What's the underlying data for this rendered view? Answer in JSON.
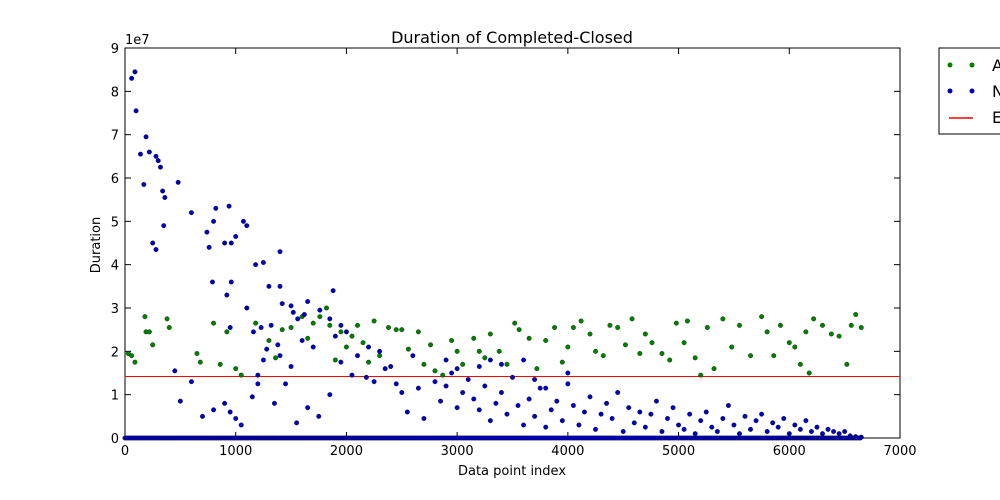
{
  "chart_data": {
    "type": "scatter",
    "title": "Duration of Completed-Closed",
    "xlabel": "Data point index",
    "ylabel": "Duration",
    "y_offset_label": "1e7",
    "xlim": [
      0,
      7000
    ],
    "ylim": [
      0,
      90000000
    ],
    "x_ticks": [
      0,
      1000,
      2000,
      3000,
      4000,
      5000,
      6000,
      7000
    ],
    "y_ticks": [
      0,
      10000000,
      20000000,
      30000000,
      40000000,
      50000000,
      60000000,
      70000000,
      80000000,
      90000000
    ],
    "x_tick_labels": [
      "0",
      "1000",
      "2000",
      "3000",
      "4000",
      "5000",
      "6000",
      "7000"
    ],
    "y_tick_labels": [
      "0",
      "1",
      "2",
      "3",
      "4",
      "5",
      "6",
      "7",
      "8",
      "9"
    ],
    "grid": false,
    "legend_position": "outside-top-right",
    "series": [
      {
        "name": "A",
        "marker": "point",
        "color": "#007f00",
        "points": [
          [
            30,
            19500000
          ],
          [
            60,
            19000000
          ],
          [
            90,
            17500000
          ],
          [
            180,
            28000000
          ],
          [
            190,
            24500000
          ],
          [
            220,
            24500000
          ],
          [
            250,
            21500000
          ],
          [
            380,
            27500000
          ],
          [
            400,
            25500000
          ],
          [
            650,
            19500000
          ],
          [
            680,
            17500000
          ],
          [
            800,
            26500000
          ],
          [
            860,
            17000000
          ],
          [
            920,
            24500000
          ],
          [
            1000,
            16000000
          ],
          [
            1050,
            14500000
          ],
          [
            1180,
            26500000
          ],
          [
            1300,
            22500000
          ],
          [
            1360,
            18500000
          ],
          [
            1420,
            25000000
          ],
          [
            1500,
            25500000
          ],
          [
            1600,
            28000000
          ],
          [
            1650,
            23000000
          ],
          [
            1700,
            26500000
          ],
          [
            1760,
            28000000
          ],
          [
            1820,
            30000000
          ],
          [
            1850,
            26000000
          ],
          [
            1900,
            18000000
          ],
          [
            1950,
            24500000
          ],
          [
            2000,
            21000000
          ],
          [
            2050,
            23500000
          ],
          [
            2100,
            26000000
          ],
          [
            2150,
            22000000
          ],
          [
            2200,
            17500000
          ],
          [
            2250,
            27000000
          ],
          [
            2300,
            19000000
          ],
          [
            2380,
            25500000
          ],
          [
            2450,
            25000000
          ],
          [
            2500,
            25000000
          ],
          [
            2560,
            20500000
          ],
          [
            2650,
            24500000
          ],
          [
            2700,
            17000000
          ],
          [
            2760,
            21500000
          ],
          [
            2800,
            15500000
          ],
          [
            2870,
            14500000
          ],
          [
            2950,
            22500000
          ],
          [
            3000,
            20000000
          ],
          [
            3050,
            17000000
          ],
          [
            3150,
            23000000
          ],
          [
            3200,
            20000000
          ],
          [
            3250,
            18500000
          ],
          [
            3300,
            24000000
          ],
          [
            3380,
            20000000
          ],
          [
            3450,
            17000000
          ],
          [
            3520,
            26500000
          ],
          [
            3560,
            25000000
          ],
          [
            3650,
            23000000
          ],
          [
            3720,
            16000000
          ],
          [
            3800,
            22500000
          ],
          [
            3880,
            25500000
          ],
          [
            3950,
            17500000
          ],
          [
            4000,
            21000000
          ],
          [
            4050,
            25500000
          ],
          [
            4120,
            27000000
          ],
          [
            4200,
            24000000
          ],
          [
            4250,
            20000000
          ],
          [
            4320,
            19000000
          ],
          [
            4380,
            26000000
          ],
          [
            4450,
            25500000
          ],
          [
            4520,
            21500000
          ],
          [
            4580,
            27500000
          ],
          [
            4650,
            19500000
          ],
          [
            4700,
            24000000
          ],
          [
            4760,
            22000000
          ],
          [
            4850,
            19500000
          ],
          [
            4920,
            18000000
          ],
          [
            4980,
            26500000
          ],
          [
            5050,
            22000000
          ],
          [
            5080,
            27000000
          ],
          [
            5150,
            18500000
          ],
          [
            5200,
            14500000
          ],
          [
            5260,
            25500000
          ],
          [
            5320,
            16000000
          ],
          [
            5400,
            27500000
          ],
          [
            5480,
            21000000
          ],
          [
            5550,
            26000000
          ],
          [
            5650,
            19000000
          ],
          [
            5750,
            28000000
          ],
          [
            5800,
            24500000
          ],
          [
            5860,
            19000000
          ],
          [
            5920,
            26000000
          ],
          [
            6000,
            22000000
          ],
          [
            6050,
            21000000
          ],
          [
            6100,
            17000000
          ],
          [
            6150,
            24500000
          ],
          [
            6180,
            15000000
          ],
          [
            6220,
            27500000
          ],
          [
            6300,
            26000000
          ],
          [
            6380,
            24000000
          ],
          [
            6450,
            23500000
          ],
          [
            6520,
            17000000
          ],
          [
            6560,
            26000000
          ],
          [
            6600,
            28500000
          ],
          [
            6650,
            25500000
          ]
        ]
      },
      {
        "name": "N",
        "marker": "point",
        "color": "#0000bf",
        "points": [
          [
            60,
            83000000
          ],
          [
            90,
            84500000
          ],
          [
            100,
            75500000
          ],
          [
            140,
            65500000
          ],
          [
            170,
            58500000
          ],
          [
            190,
            69500000
          ],
          [
            220,
            66000000
          ],
          [
            280,
            65000000
          ],
          [
            300,
            64000000
          ],
          [
            320,
            62500000
          ],
          [
            340,
            57000000
          ],
          [
            360,
            55500000
          ],
          [
            350,
            49000000
          ],
          [
            250,
            45000000
          ],
          [
            280,
            43500000
          ],
          [
            480,
            59000000
          ],
          [
            600,
            52000000
          ],
          [
            740,
            47500000
          ],
          [
            760,
            44000000
          ],
          [
            800,
            50000000
          ],
          [
            820,
            53000000
          ],
          [
            900,
            45000000
          ],
          [
            940,
            53500000
          ],
          [
            960,
            45000000
          ],
          [
            1000,
            46500000
          ],
          [
            1070,
            50000000
          ],
          [
            1100,
            49000000
          ],
          [
            960,
            36000000
          ],
          [
            790,
            36000000
          ],
          [
            920,
            33000000
          ],
          [
            1180,
            40000000
          ],
          [
            1250,
            40500000
          ],
          [
            1400,
            43000000
          ],
          [
            1300,
            35000000
          ],
          [
            1400,
            35000000
          ],
          [
            1420,
            31000000
          ],
          [
            1500,
            30500000
          ],
          [
            1520,
            29000000
          ],
          [
            1560,
            27500000
          ],
          [
            1620,
            28500000
          ],
          [
            1650,
            31500000
          ],
          [
            1760,
            29500000
          ],
          [
            1880,
            34000000
          ],
          [
            1950,
            26000000
          ],
          [
            2000,
            24500000
          ],
          [
            1320,
            26000000
          ],
          [
            1280,
            20500000
          ],
          [
            1380,
            21500000
          ],
          [
            1100,
            30000000
          ],
          [
            1160,
            24500000
          ],
          [
            1230,
            25500000
          ],
          [
            950,
            25500000
          ],
          [
            450,
            15500000
          ],
          [
            500,
            8500000
          ],
          [
            600,
            13000000
          ],
          [
            700,
            5000000
          ],
          [
            800,
            6500000
          ],
          [
            900,
            8000000
          ],
          [
            950,
            6000000
          ],
          [
            1000,
            4500000
          ],
          [
            1050,
            3000000
          ],
          [
            1150,
            9500000
          ],
          [
            1200,
            12500000
          ],
          [
            1250,
            18000000
          ],
          [
            1350,
            8000000
          ],
          [
            1450,
            12500000
          ],
          [
            1550,
            3500000
          ],
          [
            1650,
            7000000
          ],
          [
            1750,
            5000000
          ],
          [
            1850,
            10000000
          ],
          [
            1950,
            17500000
          ],
          [
            2050,
            14500000
          ],
          [
            2100,
            19000000
          ],
          [
            2180,
            14000000
          ],
          [
            2250,
            13000000
          ],
          [
            2350,
            16000000
          ],
          [
            2450,
            12500000
          ],
          [
            2500,
            10500000
          ],
          [
            2550,
            6000000
          ],
          [
            2650,
            11500000
          ],
          [
            2700,
            4500000
          ],
          [
            2800,
            13000000
          ],
          [
            2850,
            8500000
          ],
          [
            2900,
            12000000
          ],
          [
            2950,
            15000000
          ],
          [
            3000,
            7000000
          ],
          [
            3050,
            10500000
          ],
          [
            3100,
            13500000
          ],
          [
            3150,
            9000000
          ],
          [
            3200,
            6500000
          ],
          [
            3250,
            12000000
          ],
          [
            3300,
            4000000
          ],
          [
            3350,
            8000000
          ],
          [
            3400,
            10500000
          ],
          [
            3450,
            5500000
          ],
          [
            3500,
            14000000
          ],
          [
            3550,
            7500000
          ],
          [
            3600,
            3000000
          ],
          [
            3650,
            9000000
          ],
          [
            3700,
            5000000
          ],
          [
            3750,
            11500000
          ],
          [
            3800,
            2500000
          ],
          [
            3850,
            6500000
          ],
          [
            3900,
            8500000
          ],
          [
            3950,
            4000000
          ],
          [
            4000,
            12500000
          ],
          [
            4050,
            7500000
          ],
          [
            4100,
            3000000
          ],
          [
            4150,
            6000000
          ],
          [
            4200,
            9500000
          ],
          [
            4250,
            2000000
          ],
          [
            4300,
            5500000
          ],
          [
            4350,
            8000000
          ],
          [
            4400,
            4500000
          ],
          [
            4450,
            10500000
          ],
          [
            4500,
            1500000
          ],
          [
            4550,
            7000000
          ],
          [
            4600,
            3500000
          ],
          [
            4650,
            6000000
          ],
          [
            4700,
            2500000
          ],
          [
            4750,
            5500000
          ],
          [
            4800,
            8500000
          ],
          [
            4850,
            1500000
          ],
          [
            4900,
            4500000
          ],
          [
            4950,
            7000000
          ],
          [
            5000,
            3000000
          ],
          [
            5050,
            2000000
          ],
          [
            5100,
            5500000
          ],
          [
            5150,
            1000000
          ],
          [
            5200,
            4000000
          ],
          [
            5250,
            6000000
          ],
          [
            5300,
            2500000
          ],
          [
            5350,
            1500000
          ],
          [
            5400,
            4500000
          ],
          [
            5450,
            7500000
          ],
          [
            5500,
            3000000
          ],
          [
            5550,
            1000000
          ],
          [
            5600,
            5000000
          ],
          [
            5650,
            2000000
          ],
          [
            5700,
            4000000
          ],
          [
            5750,
            5500000
          ],
          [
            5800,
            1500000
          ],
          [
            5850,
            3500000
          ],
          [
            5900,
            2500000
          ],
          [
            5950,
            4500000
          ],
          [
            6000,
            1000000
          ],
          [
            6050,
            3000000
          ],
          [
            6100,
            2000000
          ],
          [
            6150,
            4000000
          ],
          [
            6200,
            1500000
          ],
          [
            6250,
            2500000
          ],
          [
            6300,
            1000000
          ],
          [
            6350,
            2000000
          ],
          [
            6400,
            1500000
          ],
          [
            6450,
            1000000
          ],
          [
            6500,
            1500000
          ],
          [
            6550,
            500000
          ],
          [
            6600,
            300000
          ],
          [
            6650,
            200000
          ],
          [
            3300,
            18000000
          ],
          [
            3200,
            16500000
          ],
          [
            3600,
            18000000
          ],
          [
            2600,
            19000000
          ],
          [
            2400,
            16500000
          ],
          [
            3000,
            16000000
          ],
          [
            3700,
            13500000
          ],
          [
            3800,
            11500000
          ],
          [
            3400,
            17000000
          ],
          [
            4000,
            15000000
          ],
          [
            2900,
            18000000
          ],
          [
            2200,
            21000000
          ],
          [
            2300,
            20000000
          ],
          [
            1900,
            23500000
          ],
          [
            1850,
            27500000
          ],
          [
            1700,
            21000000
          ],
          [
            1600,
            22500000
          ],
          [
            1500,
            16500000
          ],
          [
            1400,
            19000000
          ],
          [
            1200,
            14500000
          ]
        ]
      }
    ],
    "lines": [
      {
        "name": "E",
        "type": "hline",
        "y": 14200000,
        "color": "#ff0000"
      }
    ]
  }
}
